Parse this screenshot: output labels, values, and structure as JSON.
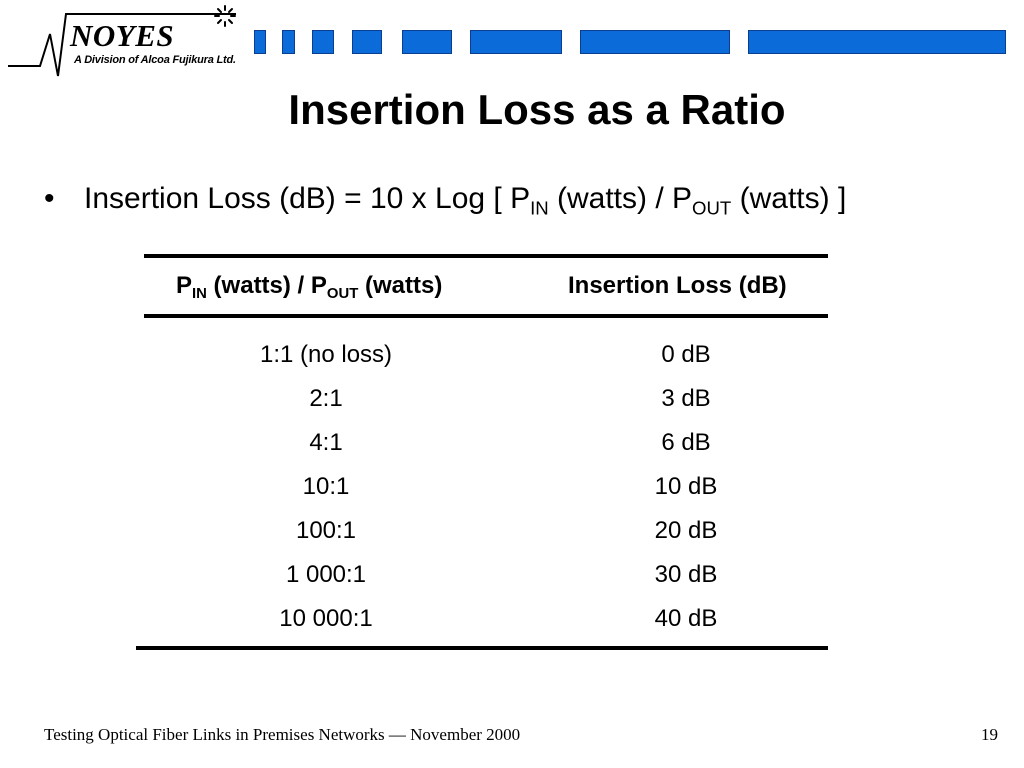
{
  "logo": {
    "name": "NOYES",
    "subtitle": "A Division of Alcoa Fujikura Ltd."
  },
  "slide": {
    "title": "Insertion Loss as a Ratio",
    "bullet": {
      "symbol": "•",
      "prefix": "Insertion Loss (dB) = 10 x Log [ P",
      "sub1": "IN",
      "middle": " (watts) / P",
      "sub2": "OUT",
      "suffix": " (watts) ]"
    }
  },
  "table": {
    "header_ratio": {
      "p1": "P",
      "sub1": "IN",
      "mid": " (watts) / P",
      "sub2": "OUT",
      "end": " (watts)"
    },
    "header_loss": "Insertion Loss (dB)",
    "rows": [
      {
        "ratio": "1:1 (no loss)",
        "loss": "0 dB"
      },
      {
        "ratio": "2:1",
        "loss": "3 dB"
      },
      {
        "ratio": "4:1",
        "loss": "6 dB"
      },
      {
        "ratio": "10:1",
        "loss": "10 dB"
      },
      {
        "ratio": "100:1",
        "loss": "20 dB"
      },
      {
        "ratio": "1 000:1",
        "loss": "30 dB"
      },
      {
        "ratio": "10 000:1",
        "loss": "40 dB"
      }
    ]
  },
  "footer": {
    "text": "Testing Optical Fiber Links in Premises Networks — November 2000",
    "page_number": "19"
  },
  "colors": {
    "stripe_fill": "#0a6bd9",
    "stripe_border": "#0a3f8f",
    "text": "#000000",
    "background": "#ffffff"
  }
}
